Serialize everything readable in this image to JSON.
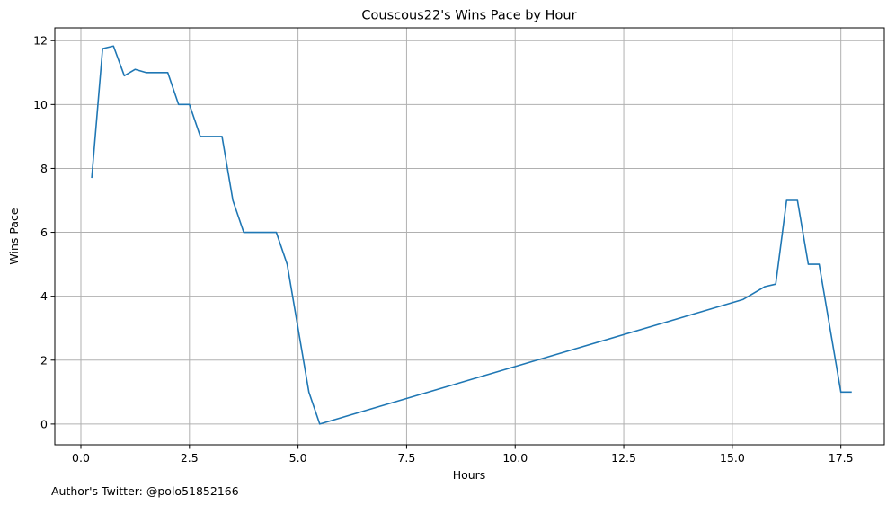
{
  "chart_data": {
    "type": "line",
    "title": "Couscous22's Wins Pace by Hour",
    "xlabel": "Hours",
    "ylabel": "Wins Pace",
    "xlim": [
      -0.6,
      18.5
    ],
    "ylim": [
      -0.65,
      12.4
    ],
    "xticks": [
      0,
      2.5,
      5,
      7.5,
      10,
      12.5,
      15,
      17.5
    ],
    "xtick_labels": [
      "0.0",
      "2.5",
      "5.0",
      "7.5",
      "10.0",
      "12.5",
      "15.0",
      "17.5"
    ],
    "yticks": [
      0,
      2,
      4,
      6,
      8,
      10,
      12
    ],
    "ytick_labels": [
      "0",
      "2",
      "4",
      "6",
      "8",
      "10",
      "12"
    ],
    "grid": true,
    "line_color": "#1f77b4",
    "grid_color": "#b0b0b0",
    "series": [
      {
        "x": [
          0.25,
          0.5,
          0.75,
          1.0,
          1.25,
          1.5,
          1.75,
          2.0,
          2.25,
          2.5,
          2.75,
          3.0,
          3.25,
          3.5,
          3.75,
          4.0,
          4.25,
          4.5,
          4.75,
          5.0,
          5.25,
          5.5,
          15.25,
          15.5,
          15.75,
          16.0,
          16.25,
          16.5,
          16.75,
          17.0,
          17.25,
          17.5,
          17.75
        ],
        "values": [
          7.7,
          11.75,
          11.83,
          10.9,
          11.1,
          11.0,
          11.0,
          11.0,
          10.0,
          10.0,
          9.0,
          9.0,
          9.0,
          7.0,
          6.0,
          6.0,
          6.0,
          6.0,
          5.0,
          3.0,
          1.0,
          0.0,
          3.9,
          4.1,
          4.3,
          4.38,
          7.0,
          7.0,
          5.0,
          5.0,
          3.0,
          1.0,
          1.0
        ]
      }
    ]
  },
  "footer": {
    "text": "Author's Twitter: @polo51852166"
  }
}
